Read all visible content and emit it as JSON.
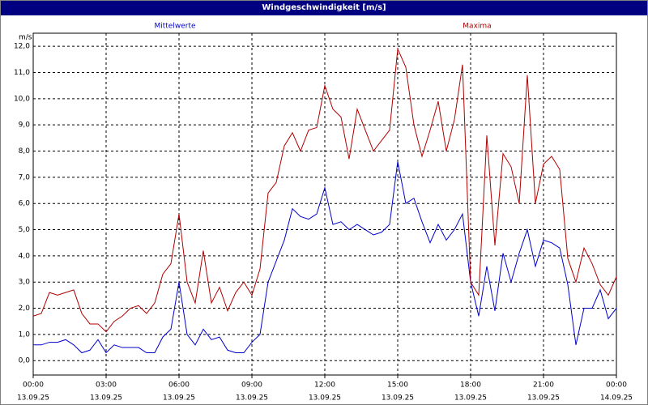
{
  "chart_data": {
    "type": "line",
    "title": "Windgeschwindigkeit [m/s]",
    "y_unit": "m/s",
    "xlim": [
      0,
      1440
    ],
    "ylim": [
      -0.55,
      12.5
    ],
    "xticks": [
      {
        "value": 0,
        "label": "00:00"
      },
      {
        "value": 180,
        "label": "03:00"
      },
      {
        "value": 360,
        "label": "06:00"
      },
      {
        "value": 540,
        "label": "09:00"
      },
      {
        "value": 720,
        "label": "12:00"
      },
      {
        "value": 900,
        "label": "15:00"
      },
      {
        "value": 1080,
        "label": "18:00"
      },
      {
        "value": 1260,
        "label": "21:00"
      },
      {
        "value": 1440,
        "label": "00:00"
      }
    ],
    "xtick_dates": [
      "13.09.25",
      "13.09.25",
      "13.09.25",
      "13.09.25",
      "13.09.25",
      "13.09.25",
      "13.09.25",
      "13.09.25",
      "14.09.25"
    ],
    "yticks": [
      {
        "value": 0,
        "label": "0,0"
      },
      {
        "value": 1,
        "label": "1,0"
      },
      {
        "value": 2,
        "label": "2,0"
      },
      {
        "value": 3,
        "label": "3,0"
      },
      {
        "value": 4,
        "label": "4,0"
      },
      {
        "value": 5,
        "label": "5,0"
      },
      {
        "value": 6,
        "label": "6,0"
      },
      {
        "value": 7,
        "label": "7,0"
      },
      {
        "value": 8,
        "label": "8,0"
      },
      {
        "value": 9,
        "label": "9,0"
      },
      {
        "value": 10,
        "label": "10,0"
      },
      {
        "value": 11,
        "label": "11,0"
      },
      {
        "value": 12,
        "label": "12,0"
      }
    ],
    "grid": true,
    "x": [
      0,
      20,
      40,
      60,
      80,
      100,
      120,
      140,
      160,
      180,
      200,
      220,
      240,
      260,
      280,
      300,
      320,
      340,
      360,
      380,
      400,
      420,
      440,
      460,
      480,
      500,
      520,
      540,
      560,
      580,
      600,
      620,
      640,
      660,
      680,
      700,
      720,
      740,
      760,
      780,
      800,
      820,
      840,
      860,
      880,
      900,
      920,
      940,
      960,
      980,
      1000,
      1020,
      1040,
      1060,
      1080,
      1100,
      1120,
      1140,
      1160,
      1180,
      1200,
      1220,
      1240,
      1260,
      1280,
      1300,
      1320,
      1340,
      1360,
      1380,
      1400,
      1420,
      1440
    ],
    "series": [
      {
        "name": "Mittelwerte",
        "color": "#0000cc",
        "values": [
          0.6,
          0.6,
          0.7,
          0.7,
          0.8,
          0.6,
          0.3,
          0.4,
          0.8,
          0.3,
          0.6,
          0.5,
          0.5,
          0.5,
          0.3,
          0.3,
          0.9,
          1.2,
          3.0,
          1.0,
          0.6,
          1.2,
          0.8,
          0.9,
          0.4,
          0.3,
          0.3,
          0.7,
          1.0,
          3.0,
          3.8,
          4.6,
          5.8,
          5.5,
          5.4,
          5.6,
          6.6,
          5.2,
          5.3,
          5.0,
          5.2,
          5.0,
          4.8,
          4.9,
          5.2,
          7.6,
          6.0,
          6.2,
          5.3,
          4.5,
          5.2,
          4.6,
          5.0,
          5.6,
          3.0,
          1.7,
          3.6,
          1.9,
          4.1,
          3.0,
          4.1,
          5.0,
          3.6,
          4.6,
          4.5,
          4.3,
          2.9,
          0.6,
          2.0,
          2.0,
          2.7,
          1.6,
          2.0
        ]
      },
      {
        "name": "Maxima",
        "color": "#b00000",
        "values": [
          1.7,
          1.8,
          2.6,
          2.5,
          2.6,
          2.7,
          1.8,
          1.4,
          1.4,
          1.1,
          1.5,
          1.7,
          2.0,
          2.1,
          1.8,
          2.2,
          3.3,
          3.7,
          5.6,
          3.0,
          2.2,
          4.2,
          2.2,
          2.8,
          1.9,
          2.6,
          3.0,
          2.5,
          3.5,
          6.4,
          6.8,
          8.2,
          8.7,
          8.0,
          8.8,
          8.9,
          10.5,
          9.6,
          9.3,
          7.7,
          9.6,
          8.8,
          8.0,
          8.4,
          8.8,
          11.9,
          11.2,
          9.0,
          7.8,
          8.8,
          9.9,
          8.0,
          9.2,
          11.3,
          3.0,
          2.5,
          8.6,
          4.4,
          7.9,
          7.4,
          6.0,
          10.9,
          6.0,
          7.5,
          7.8,
          7.3,
          3.9,
          3.0,
          4.3,
          3.7,
          2.9,
          2.5,
          3.2
        ]
      }
    ]
  }
}
